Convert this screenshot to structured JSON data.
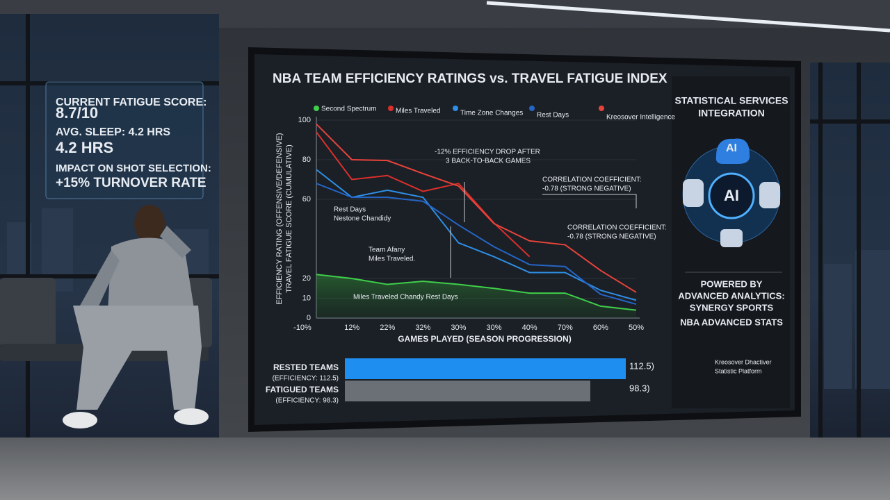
{
  "overlay": {
    "lines": [
      "CURRENT FATIGUE SCORE:",
      "8.7/10",
      "AVG. SLEEP: 4.2 HRS",
      "4.2 HRS",
      "IMPACT ON SHOT SELECTION:",
      "+15% TURNOVER RATE"
    ]
  },
  "right_panel": {
    "heading": [
      "STATISTICAL SERVICES",
      "INTEGRATION"
    ],
    "icon_labels": [
      "AI",
      "AI"
    ],
    "powered": [
      "POWERED BY",
      "ADVANCED ANALYTICS:",
      "SYNERGY SPORTS"
    ],
    "source": "NBA ADVANCED STATS",
    "footer": [
      "Kreosover Dhactiver",
      "Statistic Platform"
    ]
  },
  "chart_data": [
    {
      "type": "line",
      "title": "NBA TEAM EFFICIENCY RATINGS vs. TRAVEL FATIGUE INDEX",
      "x_label": "GAMES PLAYED (SEASON PROGRESSION)",
      "y_label": [
        "EFFICIENCY RATING (OFFENSIVE/DEFENSIVE)",
        "TRAVEL FATIGUE SCORE (CUMULATIVE)"
      ],
      "categories": [
        "-10%",
        "12%",
        "22%",
        "32%",
        "30%",
        "30%",
        "40%",
        "70%",
        "60%",
        "50%"
      ],
      "series": [
        {
          "name": "Second Spectrum",
          "color": "#3fcf4a",
          "values": [
            22,
            20,
            17,
            18.6,
            17,
            15,
            12.6,
            12.6,
            6,
            4
          ]
        },
        {
          "name": "Miles Traveled",
          "color": "#d9302c",
          "values": [
            94,
            70,
            72,
            64,
            68,
            48,
            31,
            null,
            null,
            null
          ]
        },
        {
          "name": "Time Zone Changes",
          "color": "#2e8fe6",
          "values": [
            75,
            61,
            64.6,
            61,
            38,
            31,
            23,
            23,
            14,
            9
          ]
        },
        {
          "name": "Rest Days",
          "color": "#2466c6",
          "values": [
            68,
            61,
            61,
            59,
            47,
            36,
            27,
            26,
            12,
            7
          ]
        },
        {
          "name": "Kreosover Intelligence",
          "color": "#e8433a",
          "values": [
            98,
            80,
            79.6,
            73,
            66.7,
            47.7,
            39,
            37,
            24,
            13
          ]
        }
      ],
      "ylim": [
        0,
        100
      ],
      "yticks": [
        0,
        10,
        20,
        60,
        80,
        100
      ],
      "annotations": [
        {
          "lines": [
            "-12% EFFICIENCY DROP AFTER",
            "3 BACK-TO-BACK GAMES"
          ]
        },
        {
          "lines": [
            "CORRELATION COEFFICIENT:",
            "-0.78 (STRONG NEGATIVE)"
          ]
        },
        {
          "lines": [
            "CORRELATION COEFFICIENT:",
            "-0.78 (STRONG NEGATIVE)"
          ]
        },
        {
          "lines": [
            "Rest Days",
            "Nestone Chandidy"
          ]
        },
        {
          "lines": [
            "Team Afany",
            "Miles Traveled."
          ]
        },
        {
          "lines": [
            "Miles Traveled Chandy Rest Days"
          ]
        }
      ]
    },
    {
      "type": "bar",
      "orientation": "horizontal",
      "categories": [
        "RESTED TEAMS",
        "FATIGUED TEAMS"
      ],
      "sublabels": [
        "(EFFICIENCY: 112.5)",
        "(EFFICIENCY: 98.3)"
      ],
      "values": [
        112.5,
        98.3
      ],
      "value_labels": [
        "112.5)",
        "98.3)"
      ],
      "colors": [
        "#1e8ff0",
        "#6b7077"
      ],
      "xlim": [
        0,
        115
      ]
    }
  ]
}
